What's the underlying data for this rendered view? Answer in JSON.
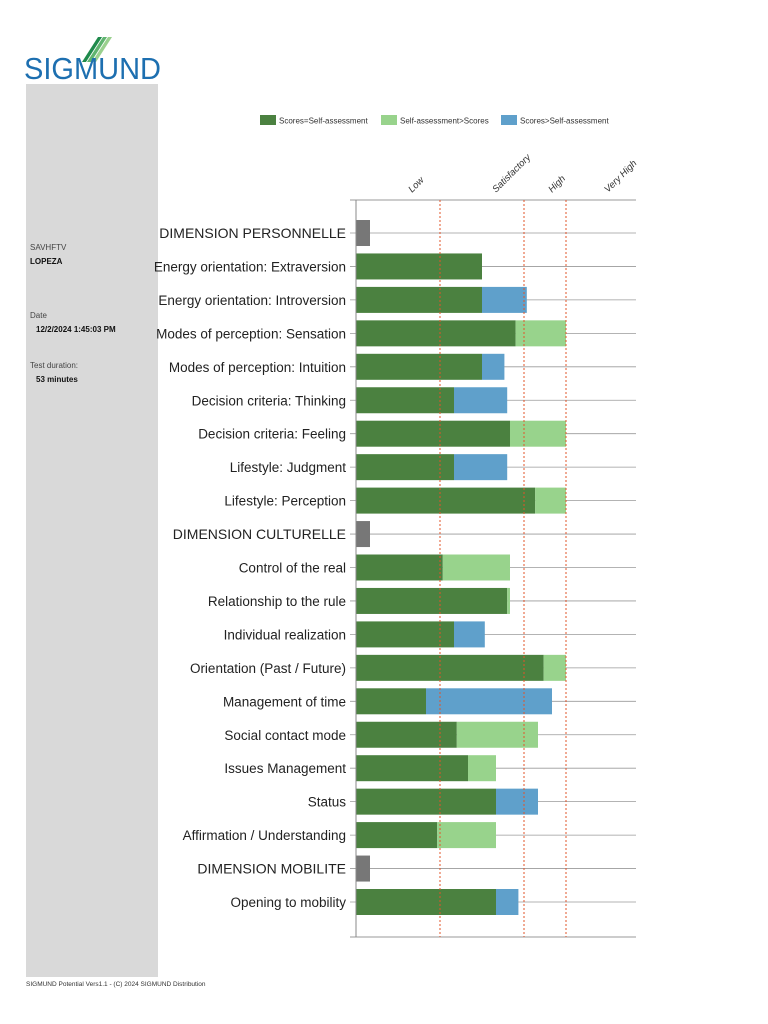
{
  "brand": {
    "logo_text": "SIGMUND",
    "logo_color": "#1d6fb0",
    "logo_stripe_colors": [
      "#1f8a4c",
      "#5fb46f",
      "#9ad08e"
    ]
  },
  "sidebar": {
    "code_label": "SAVHFTV",
    "name": "LOPEZA",
    "date_label": "Date",
    "date_value": "12/2/2024 1:45:03 PM",
    "duration_label": "Test duration:",
    "duration_value": "53 minutes"
  },
  "footer": {
    "text": "SIGMUND Potential Vers1.1 - (C) 2024 SIGMUND Distribution"
  },
  "chart_data": {
    "type": "bar",
    "orientation": "horizontal",
    "stacked": true,
    "xlim": [
      0,
      100
    ],
    "legend": [
      {
        "label": "Scores=Self-assessment",
        "color": "#4b8140"
      },
      {
        "label": "Self-assessment>Scores",
        "color": "#98d38c"
      },
      {
        "label": "Scores>Self-assessment",
        "color": "#5fa0cb"
      }
    ],
    "header_color": "#777777",
    "level_labels": [
      {
        "label": "Low",
        "value": 20
      },
      {
        "label": "Satisfactory",
        "value": 50
      },
      {
        "label": "High",
        "value": 70
      },
      {
        "label": "Very High",
        "value": 90
      }
    ],
    "thresholds": [
      30,
      60,
      75
    ],
    "rows": [
      {
        "label": "DIMENSION PERSONNELLE",
        "header": true
      },
      {
        "label": "Energy orientation: Extraversion",
        "base": 45,
        "extra": 0,
        "kind": "none"
      },
      {
        "label": "Energy orientation: Introversion",
        "base": 45,
        "extra": 16,
        "kind": "blue"
      },
      {
        "label": "Modes of perception: Sensation",
        "base": 57,
        "extra": 18,
        "kind": "light"
      },
      {
        "label": "Modes of perception: Intuition",
        "base": 45,
        "extra": 8,
        "kind": "blue"
      },
      {
        "label": "Decision criteria: Thinking",
        "base": 35,
        "extra": 19,
        "kind": "blue"
      },
      {
        "label": "Decision criteria: Feeling",
        "base": 55,
        "extra": 20,
        "kind": "light"
      },
      {
        "label": "Lifestyle: Judgment",
        "base": 35,
        "extra": 19,
        "kind": "blue"
      },
      {
        "label": "Lifestyle: Perception",
        "base": 64,
        "extra": 11,
        "kind": "light"
      },
      {
        "label": "DIMENSION CULTURELLE",
        "header": true
      },
      {
        "label": "Control of the real",
        "base": 31,
        "extra": 24,
        "kind": "light"
      },
      {
        "label": "Relationship to the rule",
        "base": 54,
        "extra": 1,
        "kind": "light"
      },
      {
        "label": "Individual realization",
        "base": 35,
        "extra": 11,
        "kind": "blue"
      },
      {
        "label": "Orientation (Past / Future)",
        "base": 67,
        "extra": 8,
        "kind": "light"
      },
      {
        "label": "Management of time",
        "base": 25,
        "extra": 45,
        "kind": "blue"
      },
      {
        "label": "Social contact mode",
        "base": 36,
        "extra": 29,
        "kind": "light"
      },
      {
        "label": "Issues Management",
        "base": 40,
        "extra": 10,
        "kind": "light"
      },
      {
        "label": "Status",
        "base": 50,
        "extra": 15,
        "kind": "blue"
      },
      {
        "label": "Affirmation / Understanding",
        "base": 29,
        "extra": 21,
        "kind": "light"
      },
      {
        "label": "DIMENSION MOBILITE",
        "header": true
      },
      {
        "label": "Opening to mobility",
        "base": 50,
        "extra": 8,
        "kind": "blue"
      }
    ]
  }
}
